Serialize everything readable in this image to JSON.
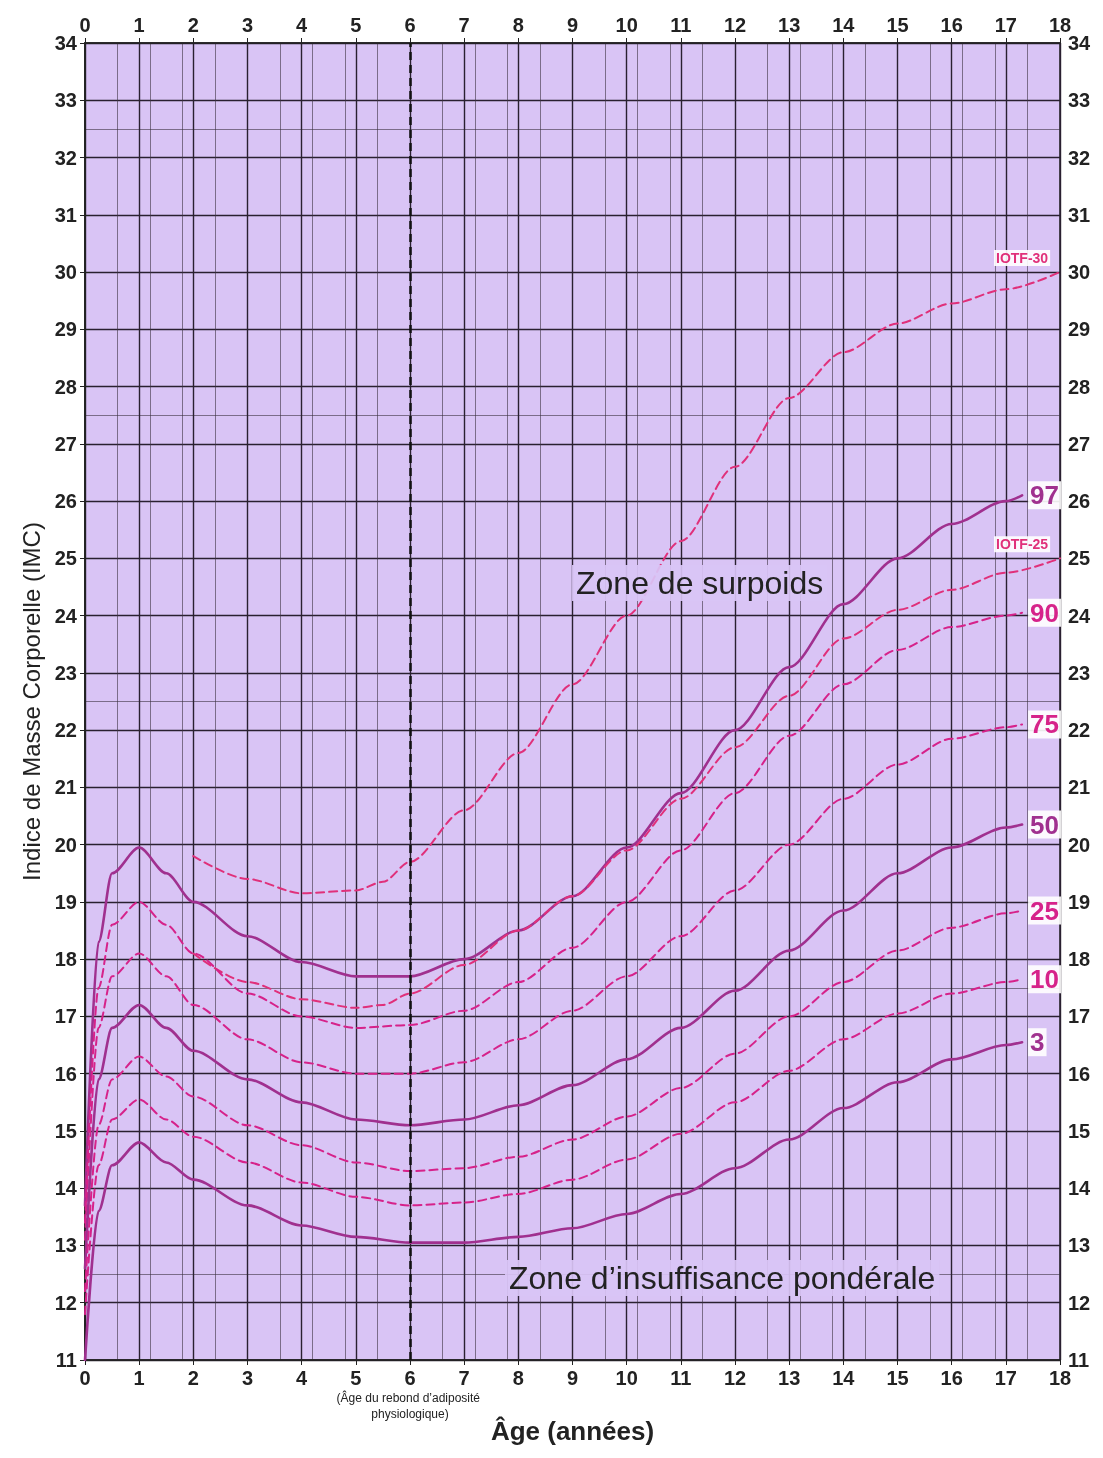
{
  "chart_data": {
    "type": "line",
    "xlabel": "Âge (années)",
    "ylabel": "Indice de Masse Corporelle (IMC)",
    "xlim": [
      0,
      18
    ],
    "xticks": [
      0,
      1,
      2,
      3,
      4,
      5,
      6,
      7,
      8,
      9,
      10,
      11,
      12,
      13,
      14,
      15,
      16,
      17,
      18
    ],
    "x2lim": [
      0,
      18
    ],
    "x2ticks": [
      0,
      1,
      2,
      3,
      4,
      5,
      6,
      7,
      8,
      9,
      10,
      11,
      12,
      13,
      14,
      15,
      16,
      17,
      18
    ],
    "ylim": [
      11,
      34
    ],
    "yticks": [
      11,
      12,
      13,
      14,
      15,
      16,
      17,
      18,
      19,
      20,
      21,
      22,
      23,
      24,
      25,
      26,
      27,
      28,
      29,
      30,
      31,
      32,
      33,
      34
    ],
    "y2lim": [
      11,
      34
    ],
    "y2ticks": [
      11,
      12,
      13,
      14,
      15,
      16,
      17,
      18,
      19,
      20,
      21,
      22,
      23,
      24,
      25,
      26,
      27,
      28,
      29,
      30,
      31,
      32,
      33,
      34
    ],
    "grid": true,
    "legend": false,
    "marker": "none",
    "annotations": [
      "Zone de surpoids",
      "Zone d’insuffisance pondérale"
    ],
    "ref_lines": [
      {
        "axis": "x",
        "value": 6,
        "label": "(Âge du rebond d’adiposité physiologique)",
        "color": "#111111",
        "line_style": "dashed"
      }
    ],
    "series": [
      {
        "name": "IOTF-30",
        "color": "#e0307a",
        "line_style": "dashed",
        "x": [
          2,
          3,
          4,
          5,
          5.5,
          6,
          7,
          8,
          9,
          10,
          11,
          12,
          13,
          14,
          15,
          16,
          17,
          18
        ],
        "values": [
          19.8,
          19.4,
          19.15,
          19.2,
          19.35,
          19.7,
          20.6,
          21.6,
          22.8,
          24.0,
          25.3,
          26.6,
          27.8,
          28.6,
          29.1,
          29.45,
          29.7,
          30.0
        ]
      },
      {
        "name": "97",
        "color": "#a0308f",
        "line_style": "solid",
        "x": [
          0,
          0.25,
          0.5,
          1,
          1.5,
          2,
          3,
          4,
          5,
          6,
          7,
          8,
          9,
          10,
          11,
          12,
          13,
          14,
          15,
          16,
          17,
          17.3
        ],
        "values": [
          13.7,
          18.3,
          19.5,
          19.95,
          19.5,
          19.0,
          18.4,
          17.95,
          17.7,
          17.7,
          18.0,
          18.5,
          19.1,
          19.95,
          20.9,
          22.0,
          23.1,
          24.2,
          25.0,
          25.6,
          26.0,
          26.1
        ]
      },
      {
        "name": "IOTF-25",
        "color": "#e0307a",
        "line_style": "dashed",
        "x": [
          2,
          3,
          4,
          5,
          5.5,
          6,
          7,
          8,
          9,
          10,
          11,
          12,
          13,
          14,
          15,
          16,
          17,
          18
        ],
        "values": [
          18.1,
          17.6,
          17.3,
          17.15,
          17.2,
          17.4,
          17.9,
          18.5,
          19.1,
          19.9,
          20.8,
          21.7,
          22.6,
          23.6,
          24.1,
          24.45,
          24.75,
          25.0
        ]
      },
      {
        "name": "90",
        "color": "#d6228a",
        "line_style": "dashed",
        "x": [
          0,
          0.25,
          0.5,
          1,
          1.5,
          2,
          3,
          4,
          5,
          6,
          7,
          8,
          9,
          10,
          11,
          12,
          13,
          14,
          15,
          16,
          17,
          17.3
        ],
        "values": [
          13.4,
          17.5,
          18.6,
          19.0,
          18.6,
          18.1,
          17.4,
          17.0,
          16.8,
          16.85,
          17.1,
          17.6,
          18.2,
          19.0,
          19.9,
          20.9,
          21.9,
          22.8,
          23.4,
          23.8,
          24.0,
          24.05
        ]
      },
      {
        "name": "75",
        "color": "#d6228a",
        "line_style": "dashed",
        "x": [
          0,
          0.25,
          0.5,
          1,
          1.5,
          2,
          3,
          4,
          5,
          6,
          7,
          8,
          9,
          10,
          11,
          12,
          13,
          14,
          15,
          16,
          17,
          17.3
        ],
        "values": [
          13.1,
          16.8,
          17.7,
          18.1,
          17.7,
          17.2,
          16.6,
          16.2,
          16.0,
          16.0,
          16.2,
          16.6,
          17.1,
          17.7,
          18.4,
          19.2,
          20.0,
          20.8,
          21.4,
          21.85,
          22.05,
          22.1
        ]
      },
      {
        "name": "50",
        "color": "#a0308f",
        "line_style": "solid",
        "x": [
          0,
          0.25,
          0.5,
          1,
          1.5,
          2,
          3,
          4,
          5,
          6,
          7,
          8,
          9,
          10,
          11,
          12,
          13,
          14,
          15,
          16,
          17,
          17.3
        ],
        "values": [
          12.6,
          15.9,
          16.8,
          17.2,
          16.8,
          16.4,
          15.9,
          15.5,
          15.2,
          15.1,
          15.2,
          15.45,
          15.8,
          16.25,
          16.8,
          17.45,
          18.15,
          18.85,
          19.5,
          19.95,
          20.3,
          20.35
        ]
      },
      {
        "name": "25",
        "color": "#d6228a",
        "line_style": "dashed",
        "x": [
          0,
          0.25,
          0.5,
          1,
          1.5,
          2,
          3,
          4,
          5,
          6,
          7,
          8,
          9,
          10,
          11,
          12,
          13,
          14,
          15,
          16,
          17,
          17.3
        ],
        "values": [
          12.2,
          15.1,
          15.9,
          16.3,
          15.95,
          15.6,
          15.1,
          14.75,
          14.45,
          14.3,
          14.35,
          14.55,
          14.85,
          15.25,
          15.75,
          16.35,
          17.0,
          17.6,
          18.15,
          18.55,
          18.8,
          18.85
        ]
      },
      {
        "name": "10",
        "color": "#d6228a",
        "line_style": "dashed",
        "x": [
          0,
          0.25,
          0.5,
          1,
          1.5,
          2,
          3,
          4,
          5,
          6,
          7,
          8,
          9,
          10,
          11,
          12,
          13,
          14,
          15,
          16,
          17,
          17.3
        ],
        "values": [
          11.8,
          14.4,
          15.2,
          15.55,
          15.2,
          14.9,
          14.45,
          14.1,
          13.85,
          13.7,
          13.75,
          13.9,
          14.15,
          14.5,
          14.95,
          15.5,
          16.05,
          16.6,
          17.05,
          17.4,
          17.6,
          17.65
        ]
      },
      {
        "name": "3",
        "color": "#a0308f",
        "line_style": "solid",
        "x": [
          0,
          0.25,
          0.5,
          1,
          1.5,
          2,
          3,
          4,
          5,
          6,
          7,
          8,
          9,
          10,
          11,
          12,
          13,
          14,
          15,
          16,
          17,
          17.3
        ],
        "values": [
          11.0,
          13.6,
          14.4,
          14.8,
          14.45,
          14.15,
          13.7,
          13.35,
          13.15,
          13.05,
          13.05,
          13.15,
          13.3,
          13.55,
          13.9,
          14.35,
          14.85,
          15.4,
          15.85,
          16.25,
          16.5,
          16.55
        ]
      }
    ]
  }
}
